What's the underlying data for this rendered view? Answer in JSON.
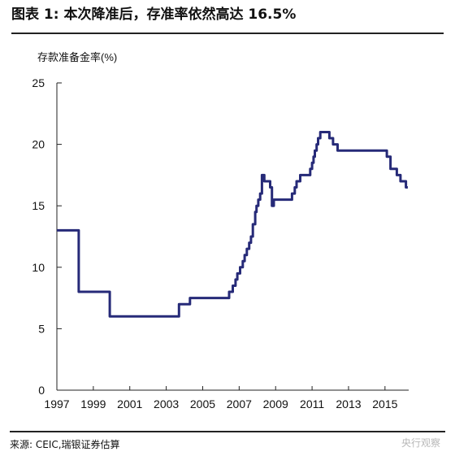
{
  "header": {
    "title": "图表 1: 本次降准后，存准率依然高达 16.5%"
  },
  "footer": {
    "source": "来源: CEIC,瑞银证券估算",
    "watermark": "央行观察"
  },
  "colors": {
    "line": "#262a78",
    "axis": "#222222",
    "text": "#111111"
  },
  "chart_data": {
    "type": "line",
    "title": "",
    "ylabel": "存款准备金率(%)",
    "xlabel": "",
    "xlim": [
      1997.0,
      2016.3
    ],
    "ylim": [
      0,
      25
    ],
    "yticks": [
      0,
      5,
      10,
      15,
      20,
      25
    ],
    "xticks": [
      1997,
      1999,
      2001,
      2003,
      2005,
      2007,
      2009,
      2011,
      2013,
      2015
    ],
    "grid": false,
    "series": [
      {
        "name": "",
        "x": [
          1997.0,
          1998.2,
          1998.2,
          1999.9,
          1999.9,
          2003.7,
          2003.7,
          2004.3,
          2004.3,
          2006.45,
          2006.45,
          2006.65,
          2006.65,
          2006.8,
          2006.8,
          2006.9,
          2006.9,
          2007.05,
          2007.05,
          2007.2,
          2007.2,
          2007.3,
          2007.3,
          2007.42,
          2007.42,
          2007.55,
          2007.55,
          2007.65,
          2007.65,
          2007.75,
          2007.75,
          2007.88,
          2007.88,
          2007.95,
          2007.95,
          2008.05,
          2008.05,
          2008.15,
          2008.15,
          2008.25,
          2008.25,
          2008.38,
          2008.38,
          2008.7,
          2008.7,
          2008.8,
          2008.8,
          2008.9,
          2008.9,
          2009.9,
          2009.9,
          2010.05,
          2010.05,
          2010.15,
          2010.15,
          2010.35,
          2010.35,
          2010.9,
          2010.9,
          2011.0,
          2011.0,
          2011.08,
          2011.08,
          2011.15,
          2011.15,
          2011.25,
          2011.25,
          2011.33,
          2011.33,
          2011.45,
          2011.45,
          2011.95,
          2011.95,
          2012.15,
          2012.15,
          2012.4,
          2012.4,
          2015.1,
          2015.1,
          2015.3,
          2015.3,
          2015.65,
          2015.65,
          2015.85,
          2015.85,
          2016.15,
          2016.15,
          2016.25
        ],
        "y": [
          13,
          13,
          8,
          8,
          6,
          6,
          7,
          7,
          7.5,
          7.5,
          8,
          8,
          8.5,
          8.5,
          9,
          9,
          9.5,
          9.5,
          10,
          10,
          10.5,
          10.5,
          11,
          11,
          11.5,
          11.5,
          12,
          12,
          12.5,
          12.5,
          13.5,
          13.5,
          14.5,
          14.5,
          15,
          15,
          15.5,
          15.5,
          16,
          16,
          17.5,
          17.5,
          17,
          17,
          16.5,
          16.5,
          15,
          15,
          15.5,
          15.5,
          16,
          16,
          16.5,
          16.5,
          17,
          17,
          17.5,
          17.5,
          18,
          18,
          18.5,
          18.5,
          19,
          19,
          19.5,
          19.5,
          20,
          20,
          20.5,
          20.5,
          21,
          21,
          20.5,
          20.5,
          20,
          20,
          19.5,
          19.5,
          19,
          19,
          18,
          18,
          17.5,
          17.5,
          17,
          17,
          16.5,
          16.5
        ]
      }
    ]
  }
}
